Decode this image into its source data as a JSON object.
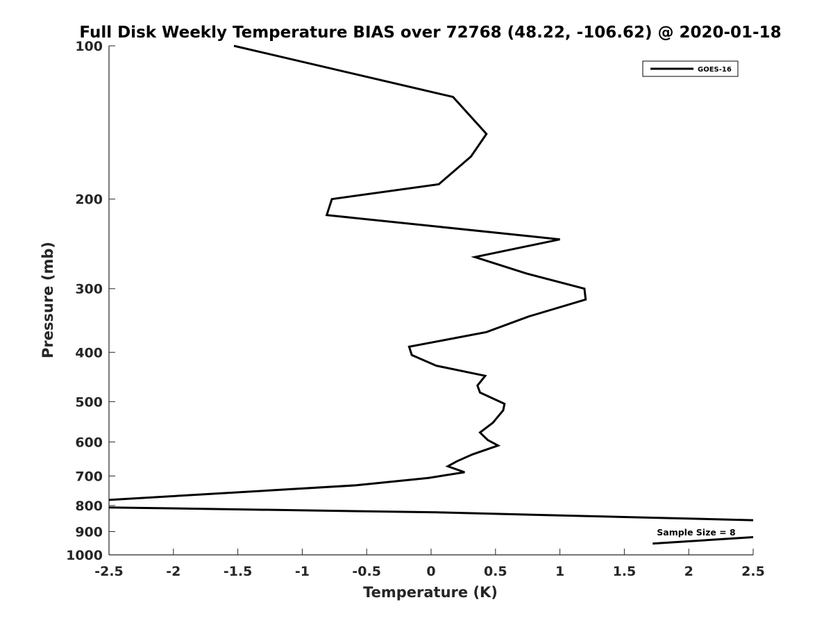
{
  "chart_data": {
    "type": "line",
    "title": "Full Disk Weekly Temperature BIAS over 72768 (48.22, -106.62) @ 2020-01-18",
    "xlabel": "Temperature (K)",
    "ylabel": "Pressure (mb)",
    "xlim": [
      -2.5,
      2.5
    ],
    "ylim": [
      100,
      1000
    ],
    "y_scale": "log",
    "y_reversed": true,
    "x_ticks": [
      "-2.5",
      "-2",
      "-1.5",
      "-1",
      "-0.5",
      "0",
      "0.5",
      "1",
      "1.5",
      "2",
      "2.5"
    ],
    "y_ticks": [
      "100",
      "200",
      "300",
      "400",
      "500",
      "600",
      "700",
      "800",
      "900",
      "1000"
    ],
    "grid": false,
    "legend_position": "top-right",
    "series": [
      {
        "name": "GOES-16",
        "color": "#000000",
        "x": [
          -1.53,
          0.17,
          0.43,
          0.31,
          0.06,
          -0.77,
          -0.81,
          1.0,
          0.34,
          0.74,
          1.19,
          1.2,
          0.76,
          0.43,
          -0.17,
          -0.15,
          0.04,
          0.42,
          0.36,
          0.38,
          0.57,
          0.56,
          0.48,
          0.38,
          0.44,
          0.52,
          0.32,
          0.2,
          0.13,
          0.26,
          -0.02,
          -0.58,
          -2.5,
          null,
          -2.5,
          0.05,
          2.5,
          null,
          2.5,
          1.72
        ],
        "y": [
          100,
          126,
          149,
          165,
          187,
          200,
          215,
          240,
          260,
          280,
          300,
          315,
          340,
          365,
          390,
          405,
          425,
          445,
          465,
          480,
          505,
          520,
          550,
          575,
          595,
          610,
          635,
          655,
          670,
          688,
          706,
          730,
          780,
          null,
          807,
          825,
          855,
          null,
          923,
          950
        ]
      }
    ],
    "annotation": "Sample Size = 8"
  }
}
